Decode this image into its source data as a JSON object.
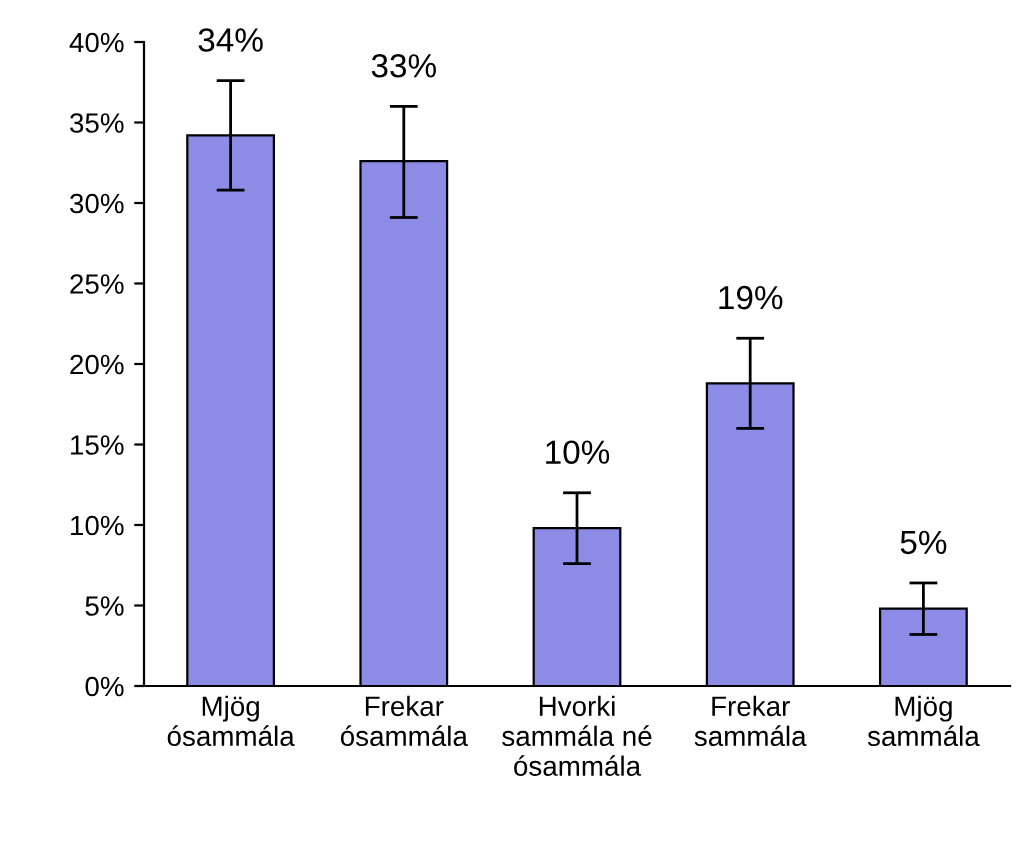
{
  "chart_data": {
    "type": "bar",
    "categories": [
      "Mjög\nósammála",
      "Frekar\nósammála",
      "Hvorki\nsammála né\nósammála",
      "Frekar\nsammála",
      "Mjög\nsammála"
    ],
    "values": [
      34.2,
      32.6,
      9.8,
      18.8,
      4.8
    ],
    "value_labels": [
      "34%",
      "33%",
      "10%",
      "19%",
      "5%"
    ],
    "errors": [
      [
        30.8,
        37.6
      ],
      [
        29.1,
        36.0
      ],
      [
        7.6,
        12.0
      ],
      [
        16.0,
        21.6
      ],
      [
        3.2,
        6.4
      ]
    ],
    "color": "#8c8ce6",
    "ylim": [
      0,
      40
    ],
    "yticks": [
      {
        "value": 0,
        "label": "0%"
      },
      {
        "value": 5,
        "label": "5%"
      },
      {
        "value": 10,
        "label": "10%"
      },
      {
        "value": 15,
        "label": "15%"
      },
      {
        "value": 20,
        "label": "20%"
      },
      {
        "value": 25,
        "label": "25%"
      },
      {
        "value": 30,
        "label": "30%"
      },
      {
        "value": 35,
        "label": "35%"
      },
      {
        "value": 40,
        "label": "40%"
      }
    ],
    "grid": false
  }
}
